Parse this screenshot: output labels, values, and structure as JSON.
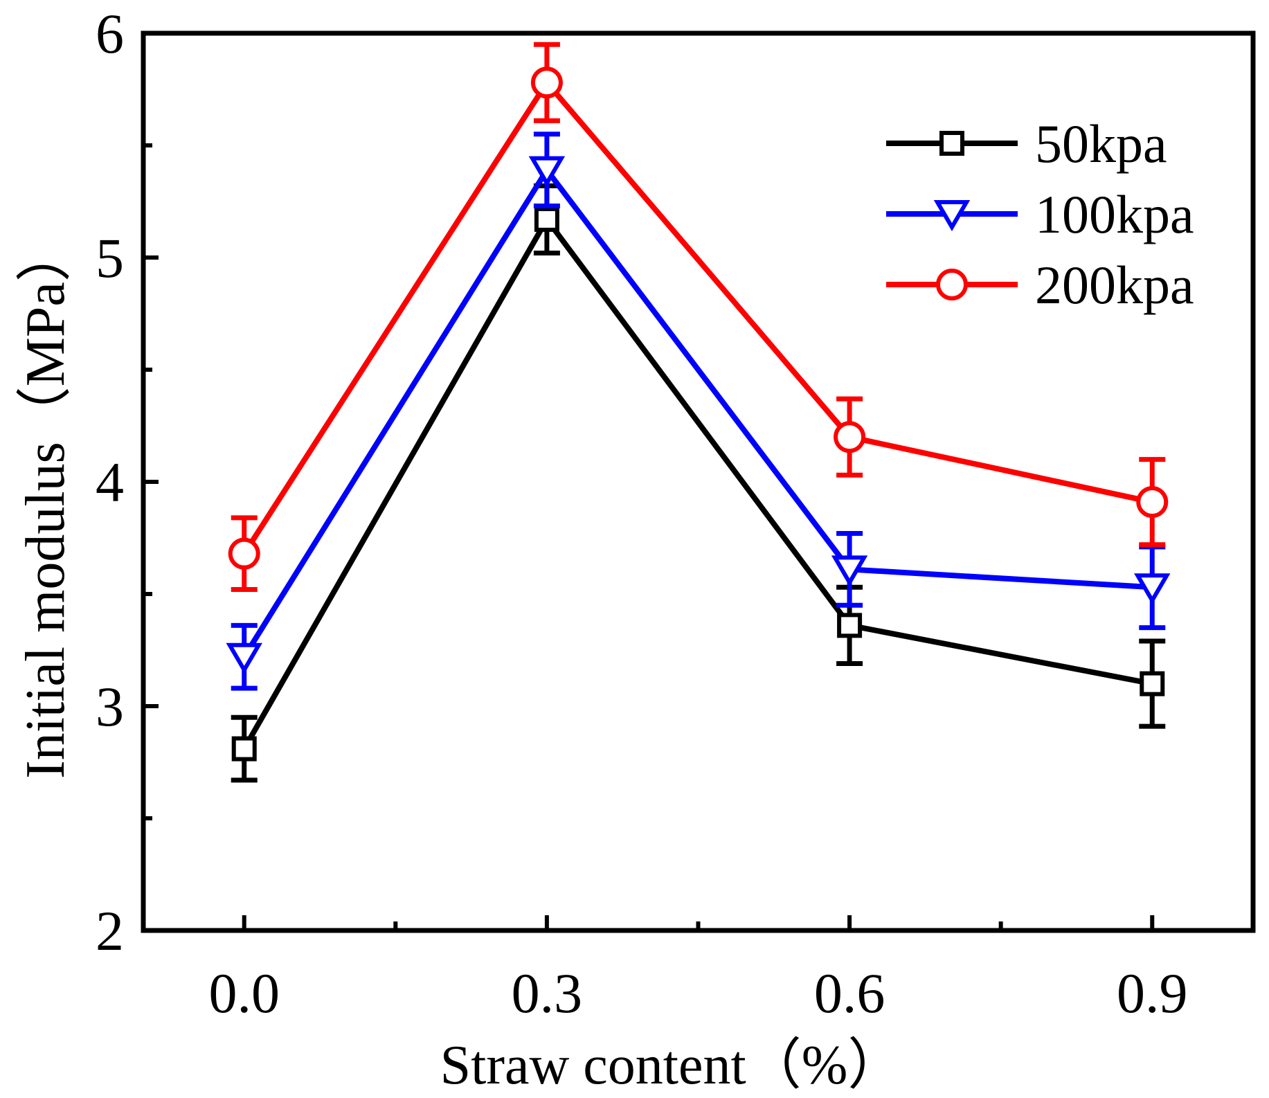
{
  "chart_data": {
    "type": "line",
    "title": "",
    "xlabel": "Straw content（%）",
    "ylabel": "Initial modulus（MPa）",
    "x": [
      0.0,
      0.3,
      0.6,
      0.9
    ],
    "x_tick_labels": [
      "0.0",
      "0.3",
      "0.6",
      "0.9"
    ],
    "xlim": [
      -0.1,
      1.0
    ],
    "ylim": [
      2,
      6
    ],
    "y_ticks": [
      2,
      3,
      4,
      5,
      6
    ],
    "y_tick_labels": [
      "2",
      "3",
      "4",
      "5",
      "6"
    ],
    "grid": false,
    "legend_position": "top-right",
    "series": [
      {
        "name": "50kpa",
        "color": "#000000",
        "marker": "square",
        "values": [
          2.81,
          5.17,
          3.36,
          3.1
        ],
        "errors": [
          0.14,
          0.15,
          0.17,
          0.19
        ]
      },
      {
        "name": "100kpa",
        "color": "#0000ff",
        "marker": "triangle-down",
        "values": [
          3.22,
          5.39,
          3.61,
          3.53
        ],
        "errors": [
          0.14,
          0.16,
          0.16,
          0.18
        ]
      },
      {
        "name": "200kpa",
        "color": "#ff0000",
        "marker": "circle",
        "values": [
          3.68,
          5.78,
          4.2,
          3.91
        ],
        "errors": [
          0.16,
          0.17,
          0.17,
          0.19
        ]
      }
    ]
  }
}
